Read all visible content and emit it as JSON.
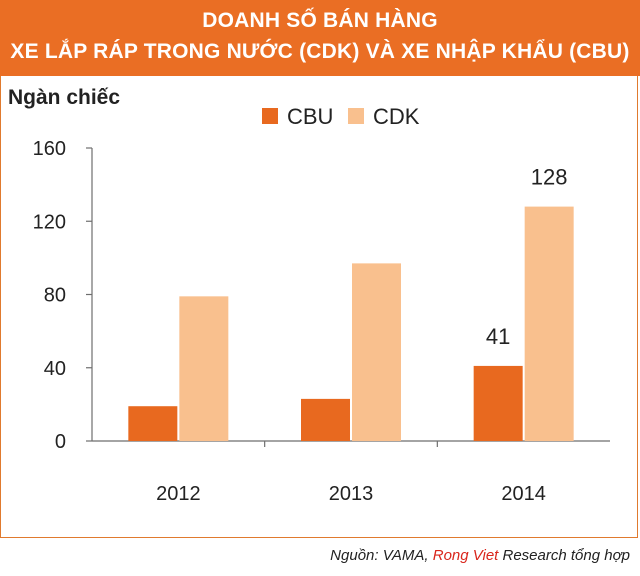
{
  "header": {
    "title_line1": "DOANH SỐ BÁN HÀNG",
    "title_line2": "XE LẮP RÁP TRONG NƯỚC  (CDK) VÀ XE NHẬP KHẨU (CBU)"
  },
  "source": {
    "prefix": "Nguồn: VAMA, ",
    "brand": "Rong Viet",
    "suffix": " Research tổng hợp"
  },
  "colors": {
    "header_bg": "#ea6e24",
    "cbu": "#e8691f",
    "cdk": "#f9c08e",
    "brand": "#d9261c"
  },
  "chart_data": {
    "type": "bar",
    "ylabel": "Ngàn chiếc",
    "ylim": [
      0,
      160
    ],
    "yticks": [
      0,
      40,
      80,
      120,
      160
    ],
    "categories": [
      "2012",
      "2013",
      "2014"
    ],
    "series": [
      {
        "name": "CBU",
        "values": [
          19,
          23,
          41
        ],
        "color": "#e8691f"
      },
      {
        "name": "CDK",
        "values": [
          79,
          97,
          128
        ],
        "color": "#f9c08e"
      }
    ],
    "data_labels": [
      {
        "series": "CBU",
        "category": "2014",
        "text": "41"
      },
      {
        "series": "CDK",
        "category": "2014",
        "text": "128"
      }
    ],
    "legend": "top",
    "grid": false
  }
}
